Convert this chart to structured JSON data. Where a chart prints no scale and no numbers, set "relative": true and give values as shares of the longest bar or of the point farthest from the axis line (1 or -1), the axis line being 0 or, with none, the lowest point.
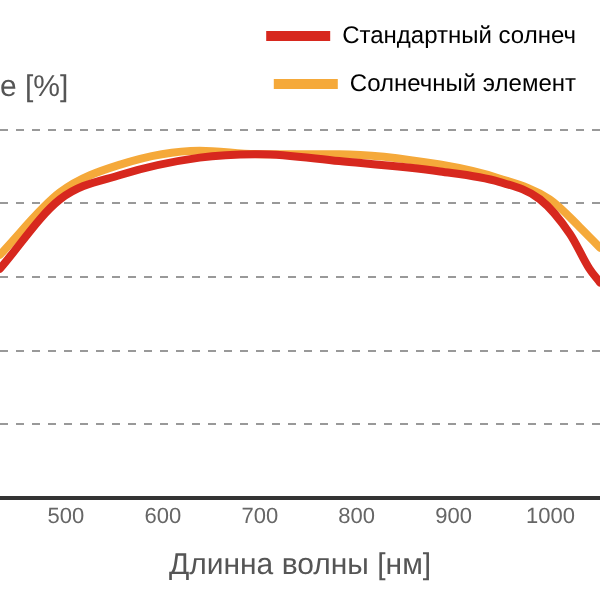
{
  "chart_data": {
    "type": "line",
    "xlabel": "Длинна волны [нм]",
    "ylabel": "е [%]",
    "relative": true,
    "xlim": [
      432,
      1051
    ],
    "xticks": [
      500,
      600,
      700,
      800,
      900,
      1000
    ],
    "grid": "y",
    "legend": "top right",
    "marker": "none",
    "line_style": "solid",
    "series": [
      {
        "name": "Стандартный солнеч",
        "color": "#d7281e",
        "x": [
          432,
          494,
          556,
          638,
          700,
          782,
          886,
          947,
          989,
          1020,
          1040,
          1051
        ],
        "values": [
          0.66,
          0.86,
          0.93,
          0.98,
          0.99,
          0.97,
          0.94,
          0.91,
          0.86,
          0.76,
          0.66,
          0.62
        ]
      },
      {
        "name": "Солнечный элемент",
        "color": "#f5a93a",
        "x": [
          432,
          494,
          556,
          638,
          700,
          782,
          886,
          947,
          999,
          1030,
          1051
        ],
        "values": [
          0.7,
          0.88,
          0.96,
          1.0,
          0.99,
          0.99,
          0.96,
          0.92,
          0.86,
          0.78,
          0.72
        ]
      }
    ]
  }
}
